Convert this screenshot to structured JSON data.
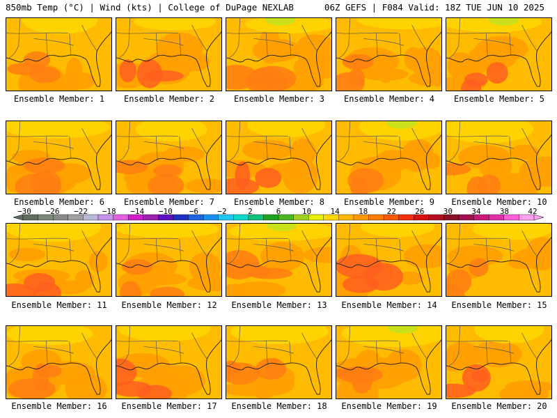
{
  "header": {
    "left": "850mb Temp (°C) | Wind (kts) | College of DuPage NEXLAB",
    "right": "06Z GEFS | F084 Valid: 18Z TUE JUN 10 2025"
  },
  "panels": [
    {
      "label": "Ensemble Member: 1"
    },
    {
      "label": "Ensemble Member: 2"
    },
    {
      "label": "Ensemble Member: 3"
    },
    {
      "label": "Ensemble Member: 4"
    },
    {
      "label": "Ensemble Member: 5"
    },
    {
      "label": "Ensemble Member: 6"
    },
    {
      "label": "Ensemble Member: 7"
    },
    {
      "label": "Ensemble Member: 8"
    },
    {
      "label": "Ensemble Member: 9"
    },
    {
      "label": "Ensemble Member: 10"
    },
    {
      "label": "Ensemble Member: 11"
    },
    {
      "label": "Ensemble Member: 12"
    },
    {
      "label": "Ensemble Member: 13"
    },
    {
      "label": "Ensemble Member: 14"
    },
    {
      "label": "Ensemble Member: 15"
    },
    {
      "label": "Ensemble Member: 16"
    },
    {
      "label": "Ensemble Member: 17"
    },
    {
      "label": "Ensemble Member: 18"
    },
    {
      "label": "Ensemble Member: 19"
    },
    {
      "label": "Ensemble Member: 20"
    }
  ],
  "colorbar": {
    "labels": [
      "−30",
      "−26",
      "−22",
      "−18",
      "−14",
      "−10",
      "−6",
      "−2",
      "2",
      "6",
      "10",
      "14",
      "18",
      "22",
      "26",
      "30",
      "34",
      "38",
      "42"
    ],
    "colors": [
      "#5f6f5f",
      "#7c887c",
      "#8a8a8a",
      "#a0a0a0",
      "#b9b9d9",
      "#c593ed",
      "#e060e0",
      "#d020c8",
      "#a020b0",
      "#6010c0",
      "#2030c0",
      "#1c64e0",
      "#1890f0",
      "#20c8f0",
      "#10d8c8",
      "#10c080",
      "#20a020",
      "#4cb820",
      "#a0d020",
      "#e8f000",
      "#ffd800",
      "#ffb800",
      "#ff9800",
      "#ff7a00",
      "#ff5a00",
      "#f03010",
      "#d81010",
      "#b01020",
      "#881028",
      "#a01050",
      "#c81878",
      "#e030a8",
      "#ff60d8",
      "#ffa0f0"
    ]
  },
  "map_colors": {
    "yellow": "#ffd400",
    "gold": "#ffbb00",
    "orange": "#ff9f00",
    "dark_orange": "#ff7e12",
    "red_orange": "#ff5f1e",
    "green_yellow": "#c6e01c",
    "coast": "#1a1a1a",
    "state": "#555555"
  }
}
